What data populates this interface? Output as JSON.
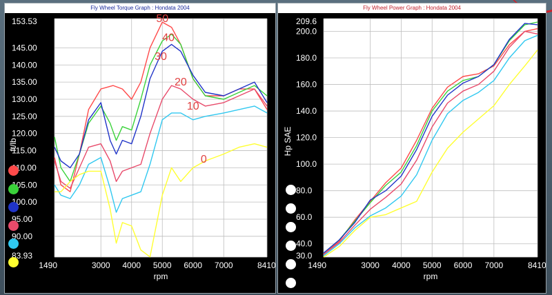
{
  "left_panel": {
    "title": "Fly Wheel Torque Graph : Hondata 2004"
  },
  "right_panel": {
    "title": "Fly Wheel Power Graph : Hondata 2004"
  },
  "legend_colors": [
    "#ff4a4a",
    "#3ad23a",
    "#2034c8",
    "#e84a6a",
    "#30c8f0",
    "#ffff30"
  ],
  "right_dots_color": "#ffffff",
  "chart_data": [
    {
      "type": "line",
      "title": "Fly Wheel Torque Graph : Hondata 2004",
      "xlabel": "rpm",
      "ylabel": "ft/lb",
      "x_ticks": [
        "1490",
        "3000",
        "4000",
        "5000",
        "6000",
        "7000",
        "8410"
      ],
      "y_ticks": [
        "153.53",
        "145.00",
        "140.00",
        "135.00",
        "130.00",
        "125.00",
        "120.00",
        "115.00",
        "110.00",
        "105.00",
        "100.00",
        "95.00",
        "90.00",
        "83.93"
      ],
      "xlim": [
        1490,
        8410
      ],
      "ylim": [
        83.93,
        153.53
      ],
      "grid": true,
      "annotations": [
        {
          "text": "50",
          "x": 5000,
          "y": 152.5,
          "color": "#e04040"
        },
        {
          "text": "40",
          "x": 5200,
          "y": 147.0,
          "color": "#e04040"
        },
        {
          "text": "30",
          "x": 4950,
          "y": 141.5,
          "color": "#e04040"
        },
        {
          "text": "20",
          "x": 5600,
          "y": 134.0,
          "color": "#e04040"
        },
        {
          "text": "10",
          "x": 6000,
          "y": 127.0,
          "color": "#e04040"
        },
        {
          "text": "0",
          "x": 6350,
          "y": 111.5,
          "color": "#e04040"
        }
      ],
      "series": [
        {
          "name": "50",
          "color": "#ff4a4a",
          "x": [
            1490,
            1700,
            2000,
            2300,
            2600,
            3000,
            3400,
            3700,
            4000,
            4300,
            4600,
            5000,
            5300,
            5600,
            6000,
            6400,
            7000,
            7500,
            8000,
            8410
          ],
          "y": [
            113,
            105,
            103,
            114,
            127,
            133,
            134,
            133,
            130,
            135,
            145,
            152.5,
            151,
            146,
            136,
            131,
            131,
            133,
            133,
            127
          ]
        },
        {
          "name": "40",
          "color": "#3ad23a",
          "x": [
            1490,
            1700,
            2000,
            2300,
            2600,
            3000,
            3300,
            3500,
            3700,
            4000,
            4300,
            4600,
            5000,
            5300,
            5600,
            6000,
            6400,
            7000,
            7500,
            8000,
            8410
          ],
          "y": [
            119,
            110,
            106,
            114,
            123,
            128,
            123,
            118,
            122,
            121,
            130,
            140,
            147,
            149,
            146,
            136,
            131,
            130,
            132,
            134,
            131
          ]
        },
        {
          "name": "30",
          "color": "#2034c8",
          "x": [
            1490,
            1700,
            2000,
            2300,
            2600,
            3000,
            3300,
            3500,
            3700,
            4000,
            4300,
            4600,
            5000,
            5300,
            5600,
            6000,
            6400,
            7000,
            7500,
            8000,
            8410
          ],
          "y": [
            116,
            112,
            110,
            114,
            124,
            129,
            118,
            114,
            118,
            117,
            125,
            136,
            144,
            146,
            144,
            137,
            132,
            131,
            133,
            135,
            129
          ]
        },
        {
          "name": "20",
          "color": "#e84a6a",
          "x": [
            1490,
            1700,
            2000,
            2300,
            2600,
            3000,
            3300,
            3500,
            3700,
            4000,
            4300,
            4600,
            5000,
            5300,
            5600,
            6000,
            6400,
            7000,
            7500,
            8000,
            8410
          ],
          "y": [
            112,
            106,
            104,
            110,
            116,
            117,
            112,
            106,
            109,
            110,
            111,
            120,
            130,
            134,
            133,
            130,
            128,
            129,
            131,
            133,
            128
          ]
        },
        {
          "name": "10",
          "color": "#30c8f0",
          "x": [
            1490,
            1700,
            2000,
            2300,
            2600,
            3000,
            3300,
            3500,
            3700,
            4000,
            4300,
            4600,
            5000,
            5300,
            5600,
            6000,
            6400,
            7000,
            7500,
            8000,
            8410
          ],
          "y": [
            105,
            102,
            101,
            105,
            111,
            113,
            104,
            97,
            101,
            102,
            103,
            111,
            124,
            126,
            126,
            124,
            125,
            126,
            127,
            128,
            126
          ]
        },
        {
          "name": "0",
          "color": "#ffff30",
          "x": [
            1490,
            1700,
            2000,
            2300,
            2600,
            3000,
            3300,
            3500,
            3700,
            4000,
            4300,
            4600,
            5000,
            5300,
            5600,
            6000,
            6400,
            7000,
            7500,
            8000,
            8410
          ],
          "y": [
            103,
            103,
            106,
            108,
            109,
            109,
            98,
            88,
            94,
            93,
            86,
            84,
            102,
            110,
            106,
            110,
            112,
            114,
            116,
            117,
            116
          ]
        }
      ]
    },
    {
      "type": "line",
      "title": "Fly Wheel Power Graph : Hondata 2004",
      "xlabel": "rpm",
      "ylabel": "Hp SAE",
      "x_ticks": [
        "1490",
        "3000",
        "4000",
        "5000",
        "6000",
        "7000",
        "8410"
      ],
      "y_ticks": [
        "209.6",
        "200.0",
        "180.0",
        "160.0",
        "140.0",
        "120.0",
        "100.0",
        "80.0",
        "60.0",
        "40.0",
        "30.0"
      ],
      "xlim": [
        1490,
        8410
      ],
      "ylim": [
        30.0,
        209.6
      ],
      "grid": true,
      "series": [
        {
          "name": "50",
          "color": "#ff4a4a",
          "x": [
            1490,
            2000,
            2500,
            3000,
            3500,
            4000,
            4500,
            5000,
            5500,
            6000,
            6500,
            7000,
            7500,
            8000,
            8410
          ],
          "y": [
            32,
            42,
            58,
            72,
            86,
            97,
            118,
            142,
            158,
            166,
            168,
            174,
            190,
            200,
            202
          ]
        },
        {
          "name": "40",
          "color": "#3ad23a",
          "x": [
            1490,
            2000,
            2500,
            3000,
            3500,
            4000,
            4500,
            5000,
            5500,
            6000,
            6500,
            7000,
            7500,
            8000,
            8410
          ],
          "y": [
            33,
            43,
            57,
            71,
            84,
            94,
            114,
            140,
            155,
            163,
            166,
            175,
            193,
            205,
            207
          ]
        },
        {
          "name": "30",
          "color": "#2034c8",
          "x": [
            1490,
            2000,
            2500,
            3000,
            3500,
            4000,
            4500,
            5000,
            5500,
            6000,
            6500,
            7000,
            7500,
            8000,
            8410
          ],
          "y": [
            33,
            43,
            56,
            73,
            80,
            91,
            111,
            136,
            152,
            161,
            166,
            175,
            194,
            206,
            205
          ]
        },
        {
          "name": "20",
          "color": "#e84a6a",
          "x": [
            1490,
            2000,
            2500,
            3000,
            3500,
            4000,
            4500,
            5000,
            5500,
            6000,
            6500,
            7000,
            7500,
            8000,
            8410
          ],
          "y": [
            32,
            41,
            54,
            66,
            75,
            85,
            103,
            128,
            146,
            155,
            160,
            170,
            188,
            200,
            198
          ]
        },
        {
          "name": "10",
          "color": "#30c8f0",
          "x": [
            1490,
            2000,
            2500,
            3000,
            3500,
            4000,
            4500,
            5000,
            5500,
            6000,
            6500,
            7000,
            7500,
            8000,
            8410
          ],
          "y": [
            31,
            40,
            52,
            61,
            67,
            76,
            92,
            118,
            138,
            148,
            154,
            163,
            180,
            193,
            197
          ]
        },
        {
          "name": "0",
          "color": "#ffff30",
          "x": [
            1490,
            2000,
            2500,
            3000,
            3500,
            4000,
            4500,
            5000,
            5500,
            6000,
            6500,
            7000,
            7500,
            8000,
            8410
          ],
          "y": [
            30,
            38,
            50,
            60,
            62,
            67,
            72,
            94,
            112,
            124,
            134,
            144,
            160,
            174,
            186
          ]
        }
      ]
    }
  ]
}
